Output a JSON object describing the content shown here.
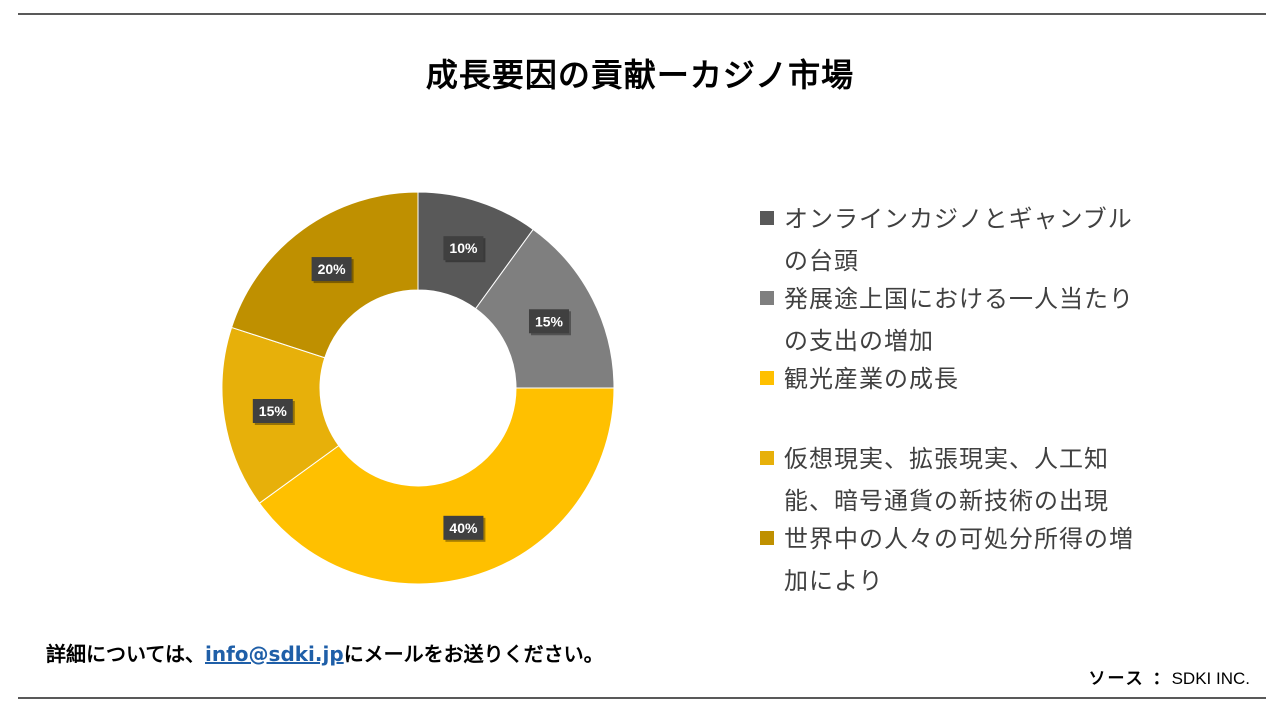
{
  "title": "成長要因の貢献ーカジノ市場",
  "chart_data": {
    "type": "pie",
    "variant": "donut",
    "title": "成長要因の貢献ーカジノ市場",
    "categories": [
      "オンラインカジノとギャンブルの台頭",
      "発展途上国における一人当たりの支出の増加",
      "観光産業の成長",
      "仮想現実、拡張現実、人工知能、暗号通貨の新技術の出現",
      "世界中の人々の可処分所得の増加により"
    ],
    "values": [
      10,
      15,
      40,
      15,
      20
    ],
    "value_labels": [
      "10%",
      "15%",
      "40%",
      "15%",
      "20%"
    ],
    "colors": [
      "#595959",
      "#7f7f7f",
      "#ffc000",
      "#e7b00a",
      "#bf9000"
    ],
    "legend_position": "right"
  },
  "legend": [
    {
      "line1": "オンラインカジノとギャンブル",
      "line2": "の台頭"
    },
    {
      "line1": "発展途上国における一人当たり",
      "line2": "の支出の増加"
    },
    {
      "line1": "観光産業の成長",
      "line2": ""
    },
    {
      "line1": "仮想現実、拡張現実、人工知",
      "line2": "能、暗号通貨の新技術の出現"
    },
    {
      "line1": "世界中の人々の可処分所得の増",
      "line2": "加により"
    }
  ],
  "footer": {
    "prefix": "詳細については、",
    "email": "info@sdki.jp",
    "suffix": "にメールをお送りください。"
  },
  "source": {
    "label": "ソース ：",
    "value": "SDKI INC."
  }
}
